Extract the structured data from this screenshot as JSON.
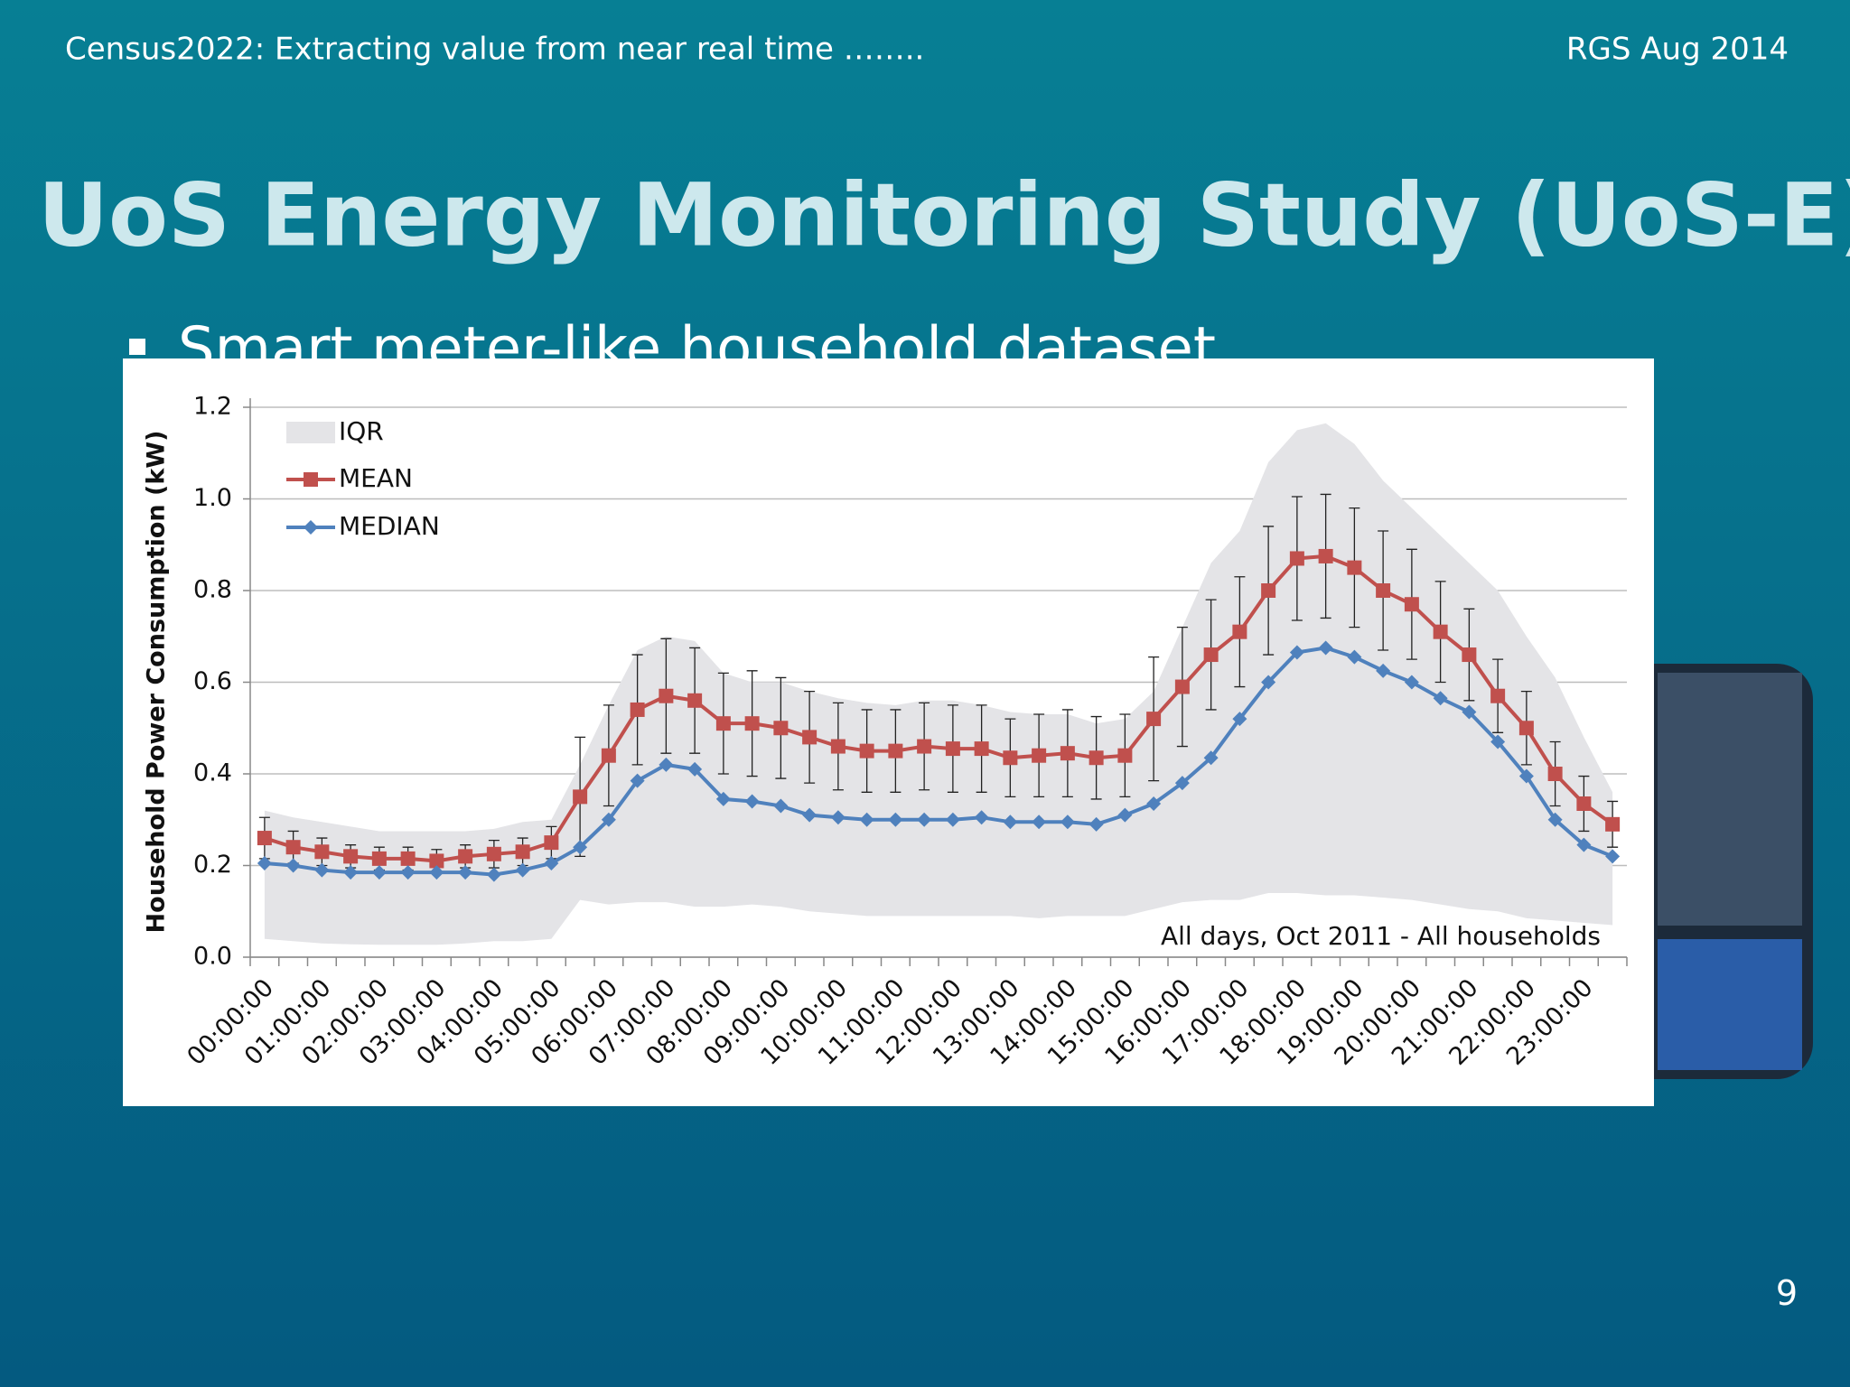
{
  "header": {
    "left": "Census2022: Extracting value from near real time ……..",
    "right": "RGS Aug 2014"
  },
  "title": "UoS Energy Monitoring Study (UoS-E)",
  "bullet": "Smart meter-like household dataset",
  "page_number": "9",
  "chart_data": {
    "type": "line",
    "y_label": "Household Power Consumption (kW)",
    "annotation": "All days, Oct 2011 - All households",
    "categories": [
      "00:00:00",
      null,
      "01:00:00",
      null,
      "02:00:00",
      null,
      "03:00:00",
      null,
      "04:00:00",
      null,
      "05:00:00",
      null,
      "06:00:00",
      null,
      "07:00:00",
      null,
      "08:00:00",
      null,
      "09:00:00",
      null,
      "10:00:00",
      null,
      "11:00:00",
      null,
      "12:00:00",
      null,
      "13:00:00",
      null,
      "14:00:00",
      null,
      "15:00:00",
      null,
      "16:00:00",
      null,
      "17:00:00",
      null,
      "18:00:00",
      null,
      "19:00:00",
      null,
      "20:00:00",
      null,
      "21:00:00",
      null,
      "22:00:00",
      null,
      "23:00:00",
      null
    ],
    "series": [
      {
        "name": "IQR",
        "color": "#e4e4e7",
        "lower": [
          0.04,
          0.035,
          0.03,
          0.028,
          0.027,
          0.027,
          0.027,
          0.03,
          0.035,
          0.035,
          0.04,
          0.125,
          0.115,
          0.12,
          0.12,
          0.11,
          0.11,
          0.115,
          0.11,
          0.1,
          0.095,
          0.09,
          0.09,
          0.09,
          0.09,
          0.09,
          0.09,
          0.085,
          0.09,
          0.09,
          0.09,
          0.105,
          0.12,
          0.125,
          0.125,
          0.14,
          0.14,
          0.135,
          0.135,
          0.13,
          0.125,
          0.115,
          0.105,
          0.1,
          0.085,
          0.08,
          0.075,
          0.07
        ],
        "upper": [
          0.32,
          0.305,
          0.295,
          0.285,
          0.275,
          0.275,
          0.275,
          0.275,
          0.28,
          0.295,
          0.3,
          0.42,
          0.55,
          0.67,
          0.7,
          0.69,
          0.62,
          0.6,
          0.6,
          0.58,
          0.565,
          0.555,
          0.55,
          0.56,
          0.56,
          0.55,
          0.535,
          0.53,
          0.53,
          0.51,
          0.52,
          0.58,
          0.72,
          0.86,
          0.93,
          1.08,
          1.15,
          1.165,
          1.12,
          1.04,
          0.98,
          0.92,
          0.86,
          0.8,
          0.7,
          0.61,
          0.48,
          0.36
        ]
      },
      {
        "name": "MEAN",
        "color": "#c0504d",
        "values": [
          0.26,
          0.24,
          0.23,
          0.22,
          0.215,
          0.215,
          0.21,
          0.22,
          0.225,
          0.23,
          0.25,
          0.35,
          0.44,
          0.54,
          0.57,
          0.56,
          0.51,
          0.51,
          0.5,
          0.48,
          0.46,
          0.45,
          0.45,
          0.46,
          0.455,
          0.455,
          0.435,
          0.44,
          0.445,
          0.435,
          0.44,
          0.52,
          0.59,
          0.66,
          0.71,
          0.8,
          0.87,
          0.875,
          0.85,
          0.8,
          0.77,
          0.71,
          0.66,
          0.57,
          0.5,
          0.4,
          0.335,
          0.29
        ],
        "errors": [
          0.045,
          0.035,
          0.03,
          0.025,
          0.025,
          0.025,
          0.025,
          0.025,
          0.03,
          0.03,
          0.035,
          0.13,
          0.11,
          0.12,
          0.125,
          0.115,
          0.11,
          0.115,
          0.11,
          0.1,
          0.095,
          0.09,
          0.09,
          0.095,
          0.095,
          0.095,
          0.085,
          0.09,
          0.095,
          0.09,
          0.09,
          0.135,
          0.13,
          0.12,
          0.12,
          0.14,
          0.135,
          0.135,
          0.13,
          0.13,
          0.12,
          0.11,
          0.1,
          0.08,
          0.08,
          0.07,
          0.06,
          0.05
        ]
      },
      {
        "name": "MEDIAN",
        "color": "#4f81bd",
        "values": [
          0.205,
          0.2,
          0.19,
          0.185,
          0.185,
          0.185,
          0.185,
          0.185,
          0.18,
          0.19,
          0.205,
          0.24,
          0.3,
          0.385,
          0.42,
          0.41,
          0.345,
          0.34,
          0.33,
          0.31,
          0.305,
          0.3,
          0.3,
          0.3,
          0.3,
          0.305,
          0.295,
          0.295,
          0.295,
          0.29,
          0.31,
          0.335,
          0.38,
          0.435,
          0.52,
          0.6,
          0.665,
          0.675,
          0.655,
          0.625,
          0.6,
          0.565,
          0.535,
          0.47,
          0.395,
          0.3,
          0.245,
          0.22
        ]
      }
    ],
    "ylim": [
      0,
      1.2
    ],
    "yticks": [
      {
        "value": 0,
        "label": "0.0"
      },
      0.2,
      0.4,
      0.6,
      0.8,
      {
        "value": 1,
        "label": "1.0"
      },
      1.2
    ],
    "grid": true,
    "legend": "upper left"
  }
}
